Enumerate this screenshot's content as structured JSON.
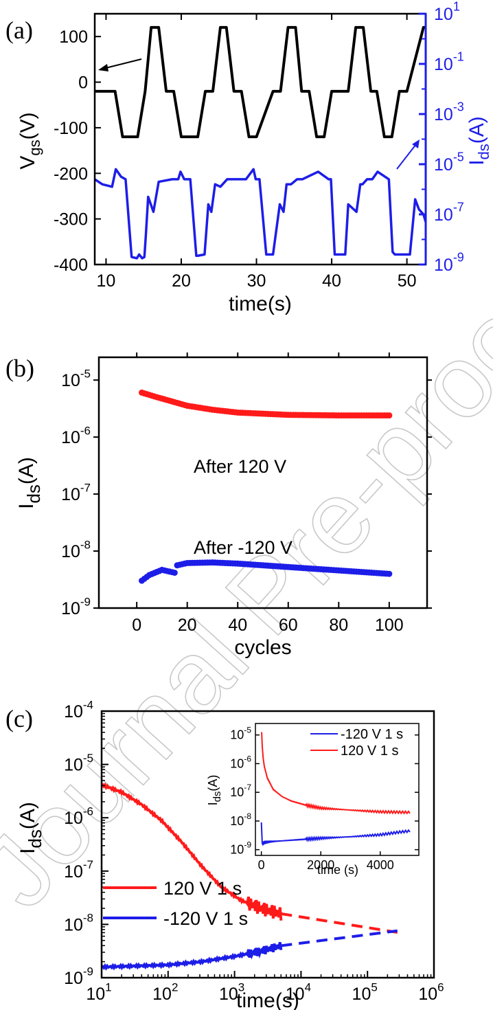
{
  "chart_data": [
    {
      "panel": "(a)",
      "type": "line",
      "xlabel": "time(s)",
      "ylabel_left": "V",
      "ylabel_left_sub": "gs",
      "ylabel_left_suffix": "(V)",
      "ylabel_right": "I",
      "ylabel_right_sub": "ds",
      "ylabel_right_suffix": "(A)",
      "xlim": [
        8.5,
        52.5
      ],
      "ylim_left": [
        -400,
        150
      ],
      "ylim_right_exp": [
        -9,
        1
      ],
      "x_ticks": [
        "10",
        "20",
        "30",
        "40",
        "50"
      ],
      "y_ticks_left": [
        "100",
        "0",
        "-100",
        "-200",
        "-300",
        "-400"
      ],
      "y_ticks_right": [
        {
          "base": "10",
          "exp": "1"
        },
        {
          "base": "10",
          "exp": "-1"
        },
        {
          "base": "10",
          "exp": "-3"
        },
        {
          "base": "10",
          "exp": "-5"
        },
        {
          "base": "10",
          "exp": "-7"
        },
        {
          "base": "10",
          "exp": "-9"
        }
      ],
      "series": [
        {
          "axis": "left",
          "color": "#000000",
          "x": [
            8.5,
            11.2,
            12.2,
            14.2,
            15.2,
            16.0,
            17.0,
            18.0,
            19.0,
            20.0,
            22.2,
            23.2,
            24.2,
            25.2,
            26.0,
            27.0,
            28.0,
            29.0,
            30.0,
            32.2,
            33.2,
            34.2,
            35.2,
            36.0,
            37.0,
            38.0,
            39.0,
            40.0,
            42.2,
            43.2,
            44.2,
            45.2,
            46.0,
            47.0,
            48.0,
            49.0,
            50.0,
            52.2,
            52.5
          ],
          "y": [
            -20,
            -20,
            -120,
            -120,
            -20,
            120,
            120,
            -20,
            -20,
            -120,
            -120,
            -20,
            -20,
            120,
            120,
            -20,
            -20,
            -120,
            -120,
            -20,
            -20,
            120,
            120,
            -20,
            -20,
            -120,
            -120,
            -20,
            -20,
            120,
            120,
            -20,
            -20,
            -120,
            -120,
            -20,
            -20,
            120,
            120
          ]
        },
        {
          "axis": "right",
          "color": "#1d1de8",
          "x": [
            8.5,
            9.5,
            10.8,
            11.3,
            12.0,
            12.6,
            13.4,
            14.1,
            14.4,
            14.8,
            15.1,
            15.3,
            15.6,
            16.3,
            17.0,
            18.8,
            19.6,
            19.9,
            20.4,
            21.2,
            22.0,
            22.2,
            23.1,
            23.6,
            24.0,
            24.5,
            25.2,
            26.1,
            28.6,
            29.6,
            29.9,
            30.4,
            31.3,
            31.8,
            32.2,
            33.1,
            33.6,
            34.0,
            34.6,
            35.4,
            36.1,
            38.2,
            39.6,
            39.9,
            40.4,
            41.1,
            41.8,
            42.2,
            43.3,
            43.8,
            44.1,
            44.7,
            45.4,
            46.1,
            47.6,
            48.1,
            48.4,
            49.4,
            50.4,
            51.1,
            51.6,
            52.2,
            52.5
          ],
          "y_exp": [
            -5.6,
            -5.8,
            -5.9,
            -5.2,
            -5.5,
            -5.6,
            -8.7,
            -8.75,
            -8.6,
            -8.75,
            -8.7,
            -7.8,
            -6.3,
            -6.9,
            -5.7,
            -5.6,
            -5.6,
            -5.3,
            -5.6,
            -5.6,
            -8.65,
            -8.65,
            -8.6,
            -6.6,
            -6.9,
            -5.8,
            -5.9,
            -5.6,
            -5.6,
            -5.2,
            -5.6,
            -5.6,
            -8.6,
            -8.6,
            -8.6,
            -6.6,
            -6.9,
            -5.8,
            -5.8,
            -5.6,
            -5.6,
            -5.3,
            -5.6,
            -5.6,
            -8.6,
            -8.6,
            -8.6,
            -6.6,
            -6.9,
            -5.8,
            -5.8,
            -5.6,
            -5.6,
            -5.3,
            -5.6,
            -8.5,
            -8.6,
            -8.6,
            -8.6,
            -6.4,
            -6.8,
            -7.0,
            -7.3
          ]
        }
      ]
    },
    {
      "panel": "(b)",
      "type": "scatter",
      "xlabel": "cycles",
      "ylabel": "I",
      "ylabel_sub": "ds",
      "ylabel_suffix": "(A)",
      "xlim": [
        -15,
        115
      ],
      "ylim_exp": [
        -9,
        -4.6
      ],
      "x_ticks": [
        "0",
        "20",
        "40",
        "60",
        "80",
        "100"
      ],
      "y_ticks": [
        {
          "base": "10",
          "exp": "-5"
        },
        {
          "base": "10",
          "exp": "-6"
        },
        {
          "base": "10",
          "exp": "-7"
        },
        {
          "base": "10",
          "exp": "-8"
        },
        {
          "base": "10",
          "exp": "-9"
        }
      ],
      "annotations": [
        "After 120 V",
        "After -120 V"
      ],
      "series": [
        {
          "name": "After 120 V",
          "color": "#ff1a1a",
          "cycles": [
            2,
            100
          ],
          "anchors_x": [
            2,
            5,
            8,
            12,
            16,
            20,
            30,
            40,
            60,
            80,
            100
          ],
          "anchors_exp": [
            -5.22,
            -5.26,
            -5.3,
            -5.35,
            -5.4,
            -5.45,
            -5.52,
            -5.57,
            -5.61,
            -5.62,
            -5.62
          ]
        },
        {
          "name": "After -120 V",
          "color": "#1d1de8",
          "cycles": [
            2,
            100
          ],
          "anchors_x": [
            2,
            5,
            10,
            15,
            16,
            20,
            30,
            40,
            60,
            80,
            100
          ],
          "anchors_exp": [
            -8.52,
            -8.42,
            -8.33,
            -8.38,
            -8.25,
            -8.21,
            -8.2,
            -8.22,
            -8.28,
            -8.34,
            -8.4
          ]
        }
      ]
    },
    {
      "panel": "(c)",
      "type": "line",
      "xlabel": "time(s)",
      "ylabel": "I",
      "ylabel_sub": "ds",
      "ylabel_suffix": "(A)",
      "xlim_exp": [
        1,
        6
      ],
      "ylim_exp": [
        -9,
        -4
      ],
      "x_ticks": [
        {
          "base": "10",
          "exp": "1"
        },
        {
          "base": "10",
          "exp": "2"
        },
        {
          "base": "10",
          "exp": "3"
        },
        {
          "base": "10",
          "exp": "4"
        },
        {
          "base": "10",
          "exp": "5"
        },
        {
          "base": "10",
          "exp": "6"
        }
      ],
      "y_ticks": [
        {
          "base": "10",
          "exp": "-4"
        },
        {
          "base": "10",
          "exp": "-5"
        },
        {
          "base": "10",
          "exp": "-6"
        },
        {
          "base": "10",
          "exp": "-7"
        },
        {
          "base": "10",
          "exp": "-8"
        },
        {
          "base": "10",
          "exp": "-9"
        }
      ],
      "legend": [
        "120 V 1 s",
        "-120 V 1 s"
      ],
      "series": [
        {
          "name": "120 V 1 s",
          "color": "#ff1a1a",
          "x_exp": [
            1.0,
            1.3,
            1.6,
            1.9,
            2.2,
            2.5,
            2.8,
            3.1,
            3.4,
            3.7
          ],
          "y_exp": [
            -5.38,
            -5.52,
            -5.75,
            -6.05,
            -6.45,
            -6.9,
            -7.3,
            -7.55,
            -7.7,
            -7.8
          ],
          "extrapolation_x_exp": [
            3.7,
            5.45
          ],
          "extrapolation_y_exp": [
            -7.8,
            -8.15
          ]
        },
        {
          "name": "-120 V 1 s",
          "color": "#1d1de8",
          "x_exp": [
            1.0,
            1.5,
            2.0,
            2.5,
            3.0,
            3.4,
            3.7
          ],
          "y_exp": [
            -8.8,
            -8.78,
            -8.76,
            -8.7,
            -8.6,
            -8.5,
            -8.4
          ],
          "extrapolation_x_exp": [
            3.7,
            5.45
          ],
          "extrapolation_y_exp": [
            -8.4,
            -8.12
          ]
        }
      ],
      "inset": {
        "xlabel": "time (s)",
        "ylabel": "I",
        "ylabel_sub": "ds",
        "ylabel_suffix": "(A)",
        "xlim": [
          -200,
          5300
        ],
        "ylim_exp": [
          -9.2,
          -4.6
        ],
        "x_ticks": [
          "0",
          "2000",
          "4000"
        ],
        "y_ticks": [
          {
            "base": "10",
            "exp": "-5"
          },
          {
            "base": "10",
            "exp": "-6"
          },
          {
            "base": "10",
            "exp": "-7"
          },
          {
            "base": "10",
            "exp": "-8"
          },
          {
            "base": "10",
            "exp": "-9"
          }
        ],
        "legend": [
          "-120 V 1 s",
          "120 V 1 s"
        ],
        "series": [
          {
            "name": "-120 V 1 s",
            "color": "#1d1de8",
            "x": [
              0,
              30,
              60,
              100,
              300,
              1000,
              2000,
              3000,
              4000,
              4700,
              5000
            ],
            "y_exp": [
              -8.05,
              -8.8,
              -8.78,
              -8.75,
              -8.72,
              -8.67,
              -8.6,
              -8.55,
              -8.48,
              -8.38,
              -8.35
            ]
          },
          {
            "name": "120 V 1 s",
            "color": "#ff1a1a",
            "x": [
              10,
              30,
              60,
              100,
              200,
              400,
              700,
              1000,
              1500,
              2000,
              3000,
              4000,
              5000
            ],
            "y_exp": [
              -4.9,
              -5.4,
              -5.8,
              -6.1,
              -6.5,
              -6.9,
              -7.15,
              -7.3,
              -7.45,
              -7.55,
              -7.62,
              -7.68,
              -7.7
            ]
          }
        ]
      }
    }
  ],
  "watermark": "Journal Pre-proof"
}
